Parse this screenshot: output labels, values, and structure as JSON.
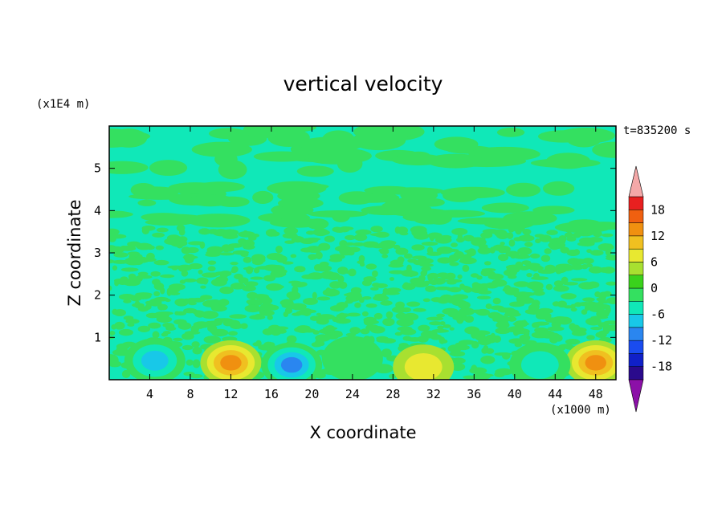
{
  "chart_data": {
    "type": "heatmap",
    "title": "vertical velocity",
    "xlabel": "X coordinate",
    "ylabel": "Z coordinate",
    "x_unit": "(x1000 m)",
    "y_unit": "(x1E4 m)",
    "time_label": "t=835200 s",
    "xlim": [
      0,
      50
    ],
    "ylim": [
      0,
      6
    ],
    "x_ticks": [
      4,
      8,
      12,
      16,
      20,
      24,
      28,
      32,
      36,
      40,
      44,
      48
    ],
    "y_ticks": [
      1,
      2,
      3,
      4,
      5
    ],
    "colorbar": {
      "levels": [
        -21,
        -18,
        -15,
        -12,
        -9,
        -6,
        -3,
        0,
        3,
        6,
        9,
        12,
        15,
        18,
        21
      ],
      "tick_labels": [
        "18",
        "12",
        "6",
        "0",
        "-6",
        "-12",
        "-18"
      ],
      "tick_values": [
        18,
        12,
        6,
        0,
        -6,
        -12,
        -18
      ],
      "colors": [
        "#6c0aa0",
        "#2a0a8c",
        "#1020c8",
        "#1a4cf0",
        "#2a86f0",
        "#18c8e8",
        "#10e8b8",
        "#34e060",
        "#3ad21c",
        "#a8e030",
        "#e8e830",
        "#f0c020",
        "#f09010",
        "#f06010",
        "#e82020",
        "#f4a8a8"
      ],
      "under_color": "#8c10a8",
      "over_color": "#f4a8a8"
    },
    "features": [
      {
        "x": 12,
        "z": 0.4,
        "w": 14
      },
      {
        "x": 48,
        "z": 0.4,
        "w": 12
      },
      {
        "x": 31,
        "z": 0.3,
        "w": 6
      },
      {
        "x": 4.5,
        "z": 0.45,
        "w": -10
      },
      {
        "x": 18,
        "z": 0.35,
        "w": -12
      },
      {
        "x": 42.5,
        "z": 0.35,
        "w": -8
      },
      {
        "x": 24,
        "z": 0.5,
        "w": -5
      }
    ]
  }
}
